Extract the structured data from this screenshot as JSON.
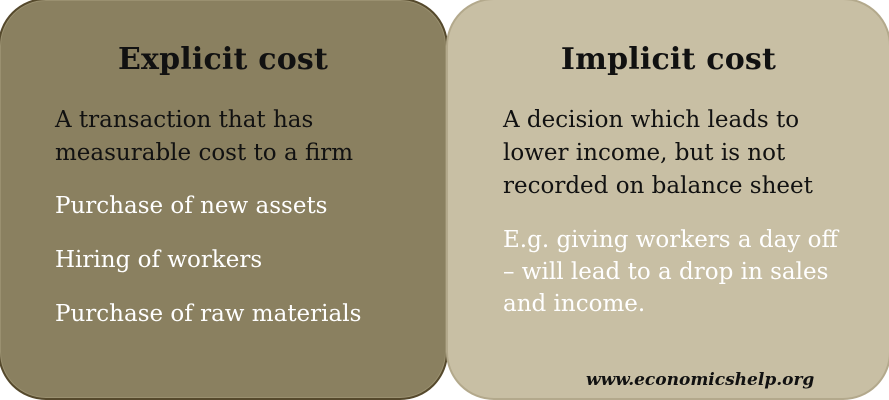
{
  "explicit": {
    "title": "Explicit cost",
    "definition": [
      "A transaction that has",
      "measurable cost to a firm"
    ],
    "items": [
      "Purchase of new assets",
      "Hiring of workers",
      "Purchase of raw materials"
    ]
  },
  "implicit": {
    "title": "Implicit cost",
    "definition": [
      "A decision which leads to",
      "lower income, but is not",
      "recorded on balance sheet"
    ],
    "example": [
      "E.g. giving workers a day off",
      "– will lead to a drop in sales",
      "and income."
    ]
  },
  "source": "www.economicshelp.org",
  "colors": {
    "explicit_bg": "#8a8060",
    "implicit_bg": "#c8bfa4"
  }
}
